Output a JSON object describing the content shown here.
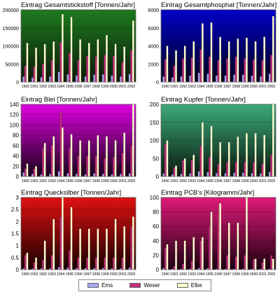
{
  "colors": {
    "Ems": "#a8a8f0",
    "Weser": "#c0307a",
    "Elbe": "#ffffd0"
  },
  "legend": [
    {
      "name": "Ems",
      "color": "#a8a8f0"
    },
    {
      "name": "Weser",
      "color": "#c0307a"
    },
    {
      "name": "Elbe",
      "color": "#ffffd0"
    }
  ],
  "chart_data": [
    {
      "type": "bar",
      "title": "Eintrag Gesamtstickstoff [Tonnen/Jahr]",
      "categories": [
        "1990",
        "1991",
        "1992",
        "1993",
        "1994",
        "1995",
        "1996",
        "1997",
        "1998",
        "1999",
        "2000",
        "2001",
        "2002"
      ],
      "ylim": [
        0,
        200000
      ],
      "yticks": [
        "0",
        "50000",
        "100000",
        "150000",
        "200000"
      ],
      "background": [
        "#1e7a1e",
        "#0a1a0a"
      ],
      "series": [
        {
          "name": "Ems",
          "values": [
            15000,
            12000,
            13000,
            15000,
            28000,
            21000,
            18000,
            15000,
            20000,
            21000,
            18000,
            15000,
            22000
          ]
        },
        {
          "name": "Weser",
          "values": [
            45000,
            42000,
            50000,
            60000,
            110000,
            80000,
            60000,
            72000,
            70000,
            75000,
            72000,
            55000,
            88000
          ]
        },
        {
          "name": "Elbe",
          "values": [
            108000,
            95000,
            105000,
            112000,
            188000,
            180000,
            118000,
            108000,
            118000,
            130000,
            105000,
            98000,
            170000
          ]
        }
      ]
    },
    {
      "type": "bar",
      "title": "Eintrag Gesamtphosphat [Tonnen/Jahr]",
      "categories": [
        "1990",
        "1991",
        "1992",
        "1993",
        "1994",
        "1995",
        "1996",
        "1997",
        "1998",
        "1999",
        "2000",
        "2001",
        "2002"
      ],
      "ylim": [
        0,
        8000
      ],
      "yticks": [
        "0",
        "2000",
        "4000",
        "6000",
        "8000"
      ],
      "background": [
        "#0000c8",
        "#000018"
      ],
      "series": [
        {
          "name": "Ems",
          "values": [
            600,
            500,
            600,
            700,
            1000,
            900,
            700,
            700,
            800,
            800,
            700,
            600,
            900
          ]
        },
        {
          "name": "Weser",
          "values": [
            2500,
            1800,
            2600,
            2700,
            3600,
            2800,
            2400,
            2600,
            2800,
            2600,
            2500,
            2400,
            3000
          ]
        },
        {
          "name": "Elbe",
          "values": [
            4000,
            3500,
            4000,
            4500,
            6500,
            6600,
            5000,
            4500,
            4800,
            4900,
            4500,
            5000,
            7300
          ]
        }
      ]
    },
    {
      "type": "bar",
      "title": "Eintrag Blei [Tonnen/Jahr]",
      "categories": [
        "1990",
        "1991",
        "1992",
        "1993",
        "1994",
        "1995",
        "1996",
        "1997",
        "1998",
        "1999",
        "2000",
        "2001",
        "2002"
      ],
      "ylim": [
        0,
        140
      ],
      "yticks": [
        "0",
        "20",
        "40",
        "60",
        "80",
        "100",
        "120",
        "140"
      ],
      "background": [
        "#e000e0",
        "#180018"
      ],
      "series": [
        {
          "name": "Ems",
          "values": [
            8,
            5,
            4,
            5,
            10,
            6,
            5,
            4,
            6,
            5,
            4,
            5,
            6
          ]
        },
        {
          "name": "Weser",
          "values": [
            15,
            15,
            55,
            60,
            125,
            55,
            40,
            40,
            40,
            35,
            38,
            45,
            60
          ]
        },
        {
          "name": "Elbe",
          "values": [
            25,
            20,
            65,
            78,
            95,
            82,
            70,
            70,
            80,
            78,
            70,
            85,
            140
          ]
        }
      ]
    },
    {
      "type": "bar",
      "title": "Eintrag Kupfer [Tonnen/Jahr]",
      "categories": [
        "1990",
        "1991",
        "1992",
        "1993",
        "1994",
        "1995",
        "1996",
        "1997",
        "1998",
        "1999",
        "2000",
        "2001",
        "2002"
      ],
      "ylim": [
        0,
        200
      ],
      "yticks": [
        "0",
        "50",
        "100",
        "150",
        "200"
      ],
      "background": [
        "#3caa78",
        "#0a1a10"
      ],
      "series": [
        {
          "name": "Ems",
          "values": [
            8,
            6,
            7,
            8,
            14,
            12,
            9,
            9,
            10,
            10,
            9,
            8,
            12
          ]
        },
        {
          "name": "Weser",
          "values": [
            90,
            25,
            45,
            45,
            85,
            55,
            35,
            40,
            40,
            40,
            40,
            35,
            60
          ]
        },
        {
          "name": "Elbe",
          "values": [
            100,
            30,
            50,
            60,
            150,
            140,
            95,
            95,
            110,
            120,
            120,
            115,
            205
          ]
        }
      ]
    },
    {
      "type": "bar",
      "title": "Eintrag Quecksilber [Tonnen/Jahr]",
      "categories": [
        "1990",
        "1991",
        "1992",
        "1993",
        "1994",
        "1995",
        "1996",
        "1997",
        "1998",
        "1999",
        "2000",
        "2001",
        "2002"
      ],
      "ylim": [
        0,
        3
      ],
      "yticks": [
        "0",
        "0.5",
        "1",
        "1.5",
        "2",
        "2.5",
        "3"
      ],
      "background": [
        "#e01010",
        "#180000"
      ],
      "series": [
        {
          "name": "Ems",
          "values": [
            0.05,
            0.04,
            0.05,
            0.05,
            0.1,
            0.08,
            0.06,
            0.06,
            0.06,
            0.06,
            0.05,
            0.05,
            0.08
          ]
        },
        {
          "name": "Weser",
          "values": [
            0.6,
            0.3,
            0.4,
            0.6,
            2.2,
            0.8,
            0.5,
            0.5,
            0.5,
            0.5,
            0.5,
            0.5,
            1.8
          ]
        },
        {
          "name": "Elbe",
          "values": [
            0.7,
            0.5,
            1.2,
            2.1,
            3.0,
            2.6,
            1.7,
            1.7,
            1.7,
            1.7,
            2.1,
            1.8,
            2.2
          ]
        }
      ]
    },
    {
      "type": "bar",
      "title": "Eintrag PCB's [Kilogramm/Jahr]",
      "categories": [
        "1990",
        "1991",
        "1992",
        "1993",
        "1994",
        "1995",
        "1996",
        "1997",
        "1998",
        "1999",
        "2000",
        "2001",
        "2002"
      ],
      "ylim": [
        0,
        100
      ],
      "yticks": [
        "0",
        "20",
        "40",
        "60",
        "80",
        "100"
      ],
      "background": [
        "#e01a78",
        "#1a0010"
      ],
      "series": [
        {
          "name": "Ems",
          "values": [
            2,
            1,
            1,
            1,
            2,
            2,
            1,
            1,
            1,
            1,
            1,
            1,
            1
          ]
        },
        {
          "name": "Weser",
          "values": [
            30,
            5,
            8,
            12,
            40,
            60,
            90,
            20,
            18,
            20,
            14,
            10,
            20
          ]
        },
        {
          "name": "Elbe",
          "values": [
            35,
            40,
            40,
            45,
            45,
            80,
            92,
            65,
            65,
            100,
            15,
            15,
            15
          ]
        }
      ]
    }
  ]
}
